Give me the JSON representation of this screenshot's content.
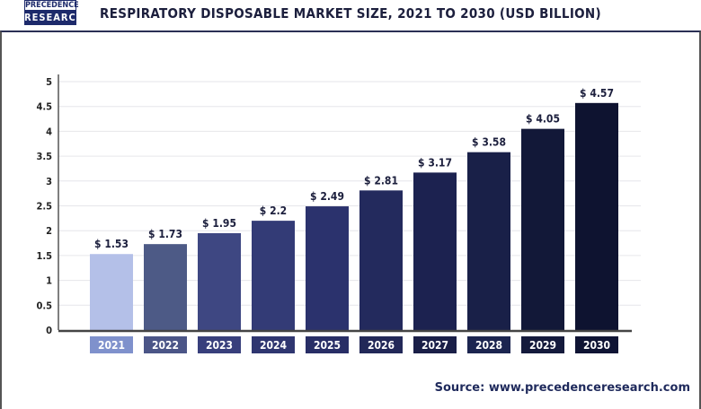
{
  "logo": {
    "line1": "PRECEDENCE",
    "line2": "RESEARCH"
  },
  "chart_data": {
    "type": "bar",
    "title": "RESPIRATORY DISPOSABLE MARKET SIZE, 2021 TO 2030 (USD BILLION)",
    "categories": [
      "2021",
      "2022",
      "2023",
      "2024",
      "2025",
      "2026",
      "2027",
      "2028",
      "2029",
      "2030"
    ],
    "values": [
      1.53,
      1.73,
      1.95,
      2.2,
      2.49,
      2.81,
      3.17,
      3.58,
      4.05,
      4.57
    ],
    "data_labels": [
      "$ 1.53",
      "$ 1.73",
      "$ 1.95",
      "$ 2.2",
      "$ 2.49",
      "$ 2.81",
      "$ 3.17",
      "$ 3.58",
      "$ 4.05",
      "$ 4.57"
    ],
    "ylim": [
      0,
      5
    ],
    "yticks": [
      "0",
      "0.5",
      "1",
      "1.5",
      "2",
      "2.5",
      "3",
      "3.5",
      "4",
      "4.5",
      "5"
    ],
    "grid": true,
    "bar_colors": [
      "#b4c0e8",
      "#4d5a86",
      "#3e4782",
      "#333b76",
      "#2b326d",
      "#232a5d",
      "#1c2250",
      "#192048",
      "#121838",
      "#0e1330"
    ],
    "label_box_colors": [
      "#7f91cc",
      "#4b5587",
      "#383f7c",
      "#2f3670",
      "#282e66",
      "#222858",
      "#1a1f48",
      "#1c2550",
      "#141a3c",
      "#0f1434"
    ],
    "xlabel": "",
    "ylabel": ""
  },
  "source": "Source: www.precedenceresearch.com"
}
